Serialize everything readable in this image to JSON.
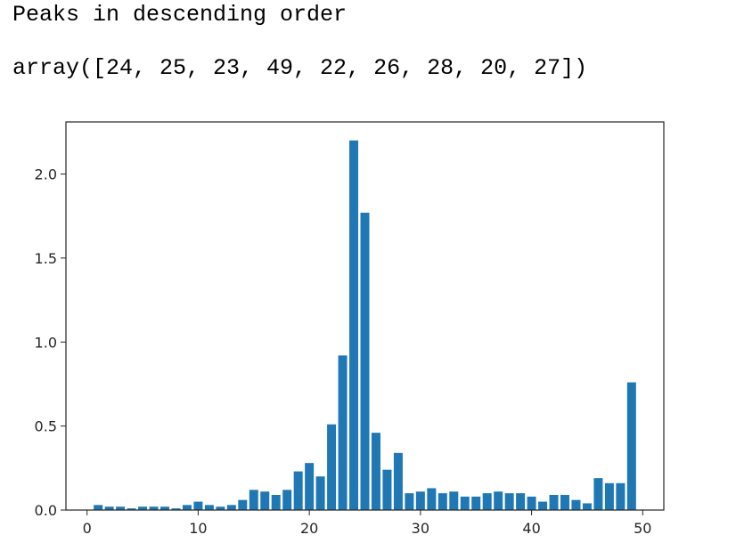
{
  "output": {
    "line1": "Peaks in descending order",
    "line2": "array([24, 25, 23, 49, 22, 26, 28, 20, 27])"
  },
  "chart_data": {
    "type": "bar",
    "color": "#1f77b4",
    "x": [
      0,
      1,
      2,
      3,
      4,
      5,
      6,
      7,
      8,
      9,
      10,
      11,
      12,
      13,
      14,
      15,
      16,
      17,
      18,
      19,
      20,
      21,
      22,
      23,
      24,
      25,
      26,
      27,
      28,
      29,
      30,
      31,
      32,
      33,
      34,
      35,
      36,
      37,
      38,
      39,
      40,
      41,
      42,
      43,
      44,
      45,
      46,
      47,
      48,
      49
    ],
    "values": [
      0.0,
      0.03,
      0.02,
      0.02,
      0.01,
      0.02,
      0.02,
      0.02,
      0.01,
      0.03,
      0.05,
      0.03,
      0.02,
      0.03,
      0.06,
      0.12,
      0.11,
      0.09,
      0.12,
      0.23,
      0.28,
      0.2,
      0.51,
      0.92,
      2.2,
      1.77,
      0.46,
      0.24,
      0.34,
      0.1,
      0.11,
      0.13,
      0.1,
      0.11,
      0.08,
      0.08,
      0.1,
      0.11,
      0.1,
      0.1,
      0.08,
      0.05,
      0.09,
      0.09,
      0.06,
      0.04,
      0.19,
      0.16,
      0.16,
      0.76
    ],
    "xlim": [
      -1.9,
      51.9
    ],
    "ylim": [
      0,
      2.31
    ],
    "xticks": [
      0,
      10,
      20,
      30,
      40,
      50
    ],
    "xtick_labels": [
      "0",
      "10",
      "20",
      "30",
      "40",
      "50"
    ],
    "yticks": [
      0.0,
      0.5,
      1.0,
      1.5,
      2.0
    ],
    "ytick_labels": [
      "0.0",
      "0.5",
      "1.0",
      "1.5",
      "2.0"
    ],
    "grid": false,
    "title": "",
    "xlabel": "",
    "ylabel": ""
  }
}
